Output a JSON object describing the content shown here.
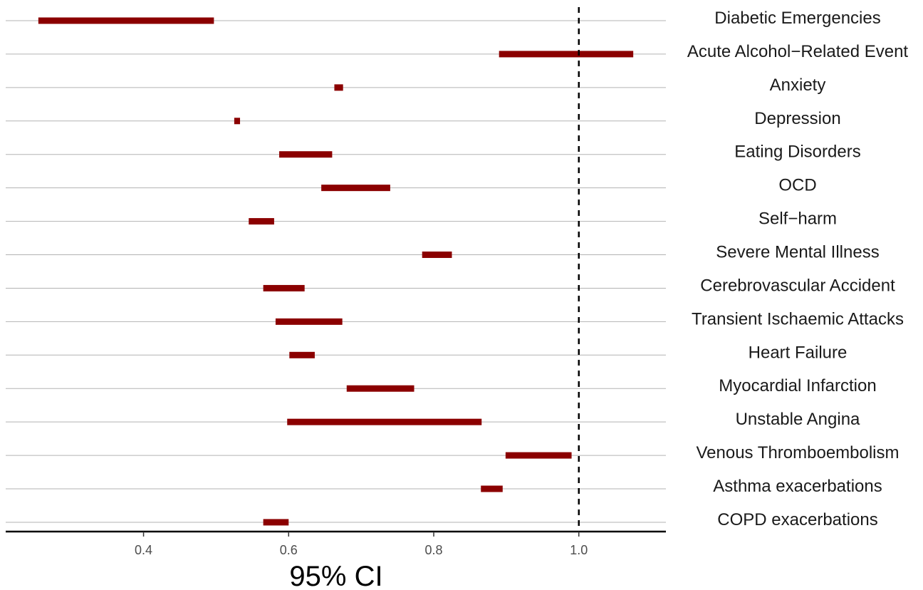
{
  "chart_data": {
    "type": "interval",
    "xlabel": "95% CI",
    "x_ticks": [
      0.4,
      0.6,
      0.8,
      1.0
    ],
    "x_tick_labels": [
      "0.4",
      "0.6",
      "0.8",
      "1.0"
    ],
    "xlim": [
      0.21,
      1.12
    ],
    "reference_line": 1.0,
    "grid": true,
    "colors": {
      "interval": "#8b0000",
      "grid": "#b3b3b3",
      "reference": "#000000"
    },
    "categories": [
      "Diabetic Emergencies",
      "Acute Alcohol−Related Event",
      "Anxiety",
      "Depression",
      "Eating Disorders",
      "OCD",
      "Self−harm",
      "Severe Mental Illness",
      "Cerebrovascular Accident",
      "Transient Ischaemic Attacks",
      "Heart Failure",
      "Myocardial Infarction",
      "Unstable Angina",
      "Venous Thromboembolism",
      "Asthma exacerbations",
      "COPD exacerbations"
    ],
    "lower": [
      0.255,
      0.89,
      0.663,
      0.525,
      0.587,
      0.645,
      0.545,
      0.784,
      0.565,
      0.582,
      0.601,
      0.68,
      0.598,
      0.899,
      0.865,
      0.565
    ],
    "upper": [
      0.497,
      1.075,
      0.675,
      0.533,
      0.66,
      0.74,
      0.58,
      0.825,
      0.622,
      0.674,
      0.636,
      0.773,
      0.866,
      0.99,
      0.895,
      0.6
    ]
  }
}
